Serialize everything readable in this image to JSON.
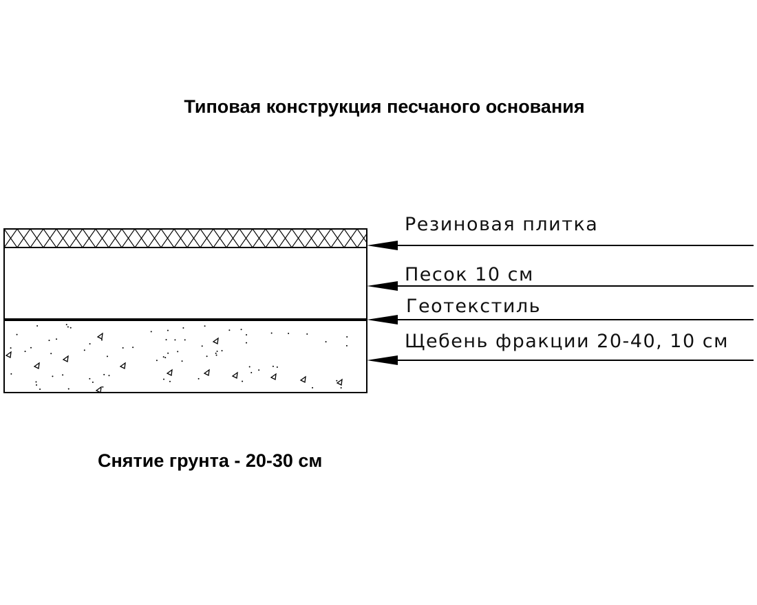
{
  "title": "Типовая конструкция песчаного основания",
  "layers": [
    {
      "label": "Резиновая плитка"
    },
    {
      "label": "Песок 10 см"
    },
    {
      "label": "Геотекстиль"
    },
    {
      "label": "Щебень фракции 20-40, 10 см"
    }
  ],
  "footnote": "Снятие грунта - 20-30 см"
}
